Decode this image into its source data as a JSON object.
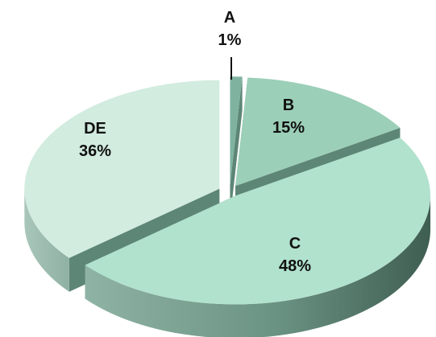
{
  "chart_data": {
    "type": "pie",
    "title": "",
    "slices": [
      {
        "label": "A",
        "value": 1,
        "display": "1%",
        "color": "#7fb3a0"
      },
      {
        "label": "B",
        "value": 15,
        "display": "15%",
        "color": "#9ccfb8"
      },
      {
        "label": "C",
        "value": 48,
        "display": "48%",
        "color": "#b1e2cd"
      },
      {
        "label": "DE",
        "value": 36,
        "display": "36%",
        "color": "#d2ecdf"
      }
    ]
  }
}
